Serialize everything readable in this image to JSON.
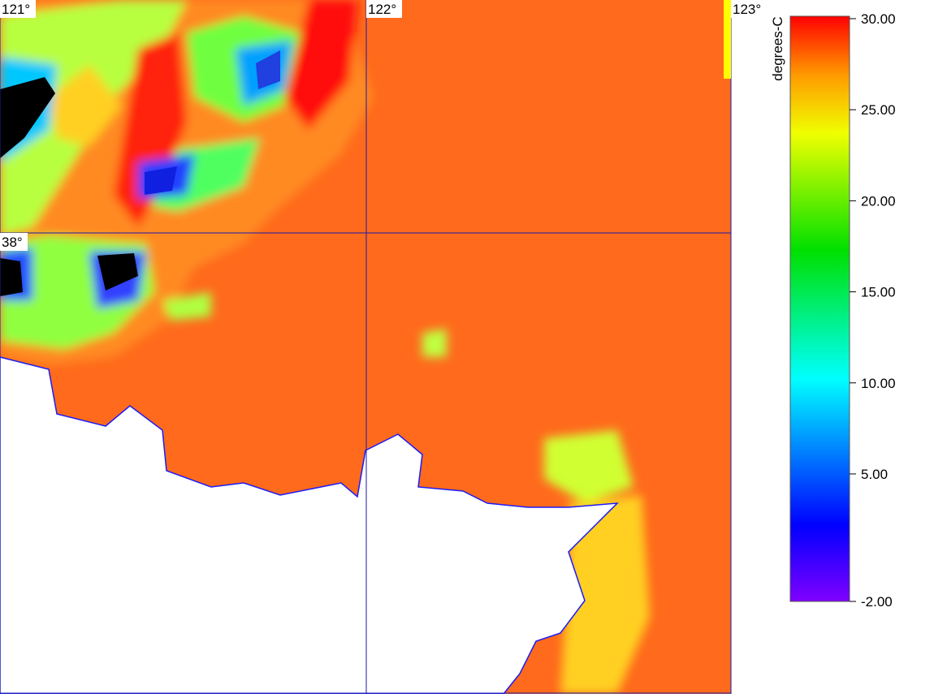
{
  "map": {
    "grid_labels": {
      "lon": [
        "121°",
        "122°",
        "123°"
      ],
      "lat": [
        "38°"
      ]
    },
    "colorbar": {
      "label": "degrees-C",
      "ticks": [
        {
          "value": 30,
          "label": "30.00"
        },
        {
          "value": 25,
          "label": "25.00"
        },
        {
          "value": 20,
          "label": "20.00"
        },
        {
          "value": 15,
          "label": "15.00"
        },
        {
          "value": 10,
          "label": "10.00"
        },
        {
          "value": 5,
          "label": "5.00"
        },
        {
          "value": -2,
          "label": "-2.00"
        }
      ]
    }
  }
}
